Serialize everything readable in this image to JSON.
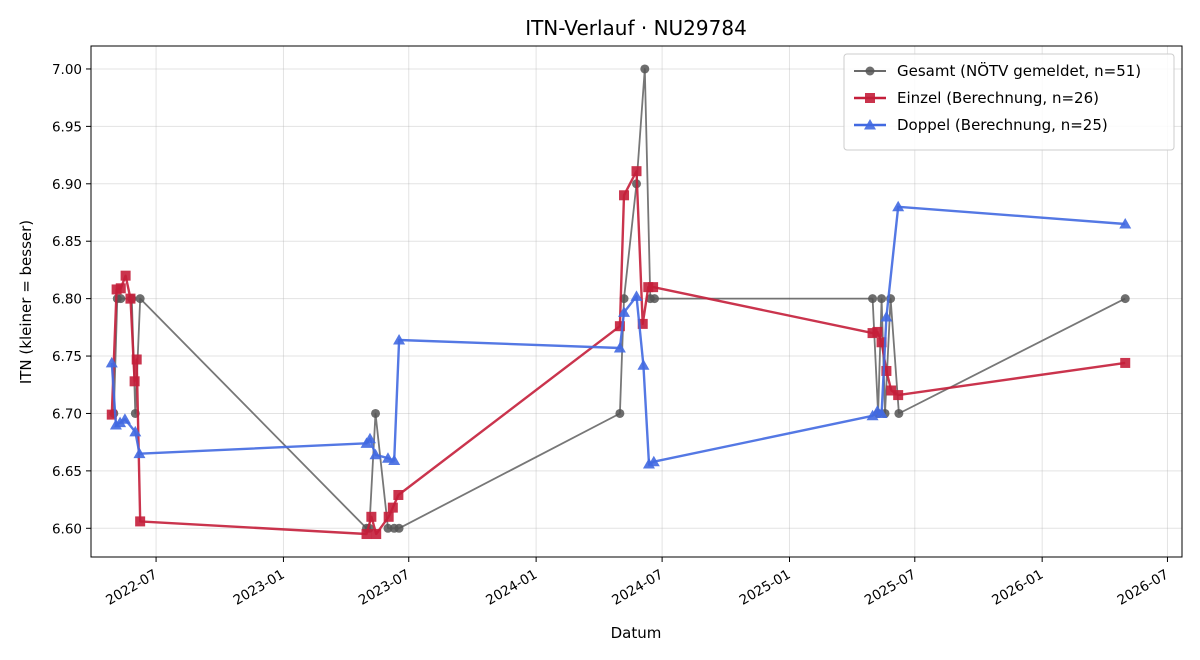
{
  "chart_data": {
    "type": "line",
    "title": "ITN-Verlauf · NU29784",
    "xlabel": "Datum",
    "ylabel": "ITN  (kleiner = besser)",
    "ylim": [
      6.575,
      7.02
    ],
    "xlim": [
      "2022-03-29",
      "2026-07-22"
    ],
    "x_ticks": [
      "2022-07",
      "2023-01",
      "2023-07",
      "2024-01",
      "2024-07",
      "2025-01",
      "2025-07",
      "2026-01",
      "2026-07"
    ],
    "y_ticks": [
      6.6,
      6.65,
      6.7,
      6.75,
      6.8,
      6.85,
      6.9,
      6.95,
      7.0
    ],
    "grid": true,
    "legend_position": "top-right",
    "series": [
      {
        "name": "Gesamt (NÖTV gemeldet, n=51)",
        "color": "#555555",
        "marker": "circle",
        "points": [
          [
            "2022-05-01",
            6.7
          ],
          [
            "2022-05-06",
            6.8
          ],
          [
            "2022-05-11",
            6.8
          ],
          [
            "2022-05-27",
            6.8
          ],
          [
            "2022-06-01",
            6.7
          ],
          [
            "2022-06-08",
            6.8
          ],
          [
            "2023-05-01",
            6.6
          ],
          [
            "2023-05-05",
            6.6
          ],
          [
            "2023-05-14",
            6.7
          ],
          [
            "2023-06-01",
            6.6
          ],
          [
            "2023-06-10",
            6.6
          ],
          [
            "2023-06-17",
            6.6
          ],
          [
            "2024-05-01",
            6.7
          ],
          [
            "2024-05-07",
            6.8
          ],
          [
            "2024-05-25",
            6.9
          ],
          [
            "2024-06-06",
            7.0
          ],
          [
            "2024-06-14",
            6.8
          ],
          [
            "2024-06-20",
            6.8
          ],
          [
            "2025-05-01",
            6.8
          ],
          [
            "2025-05-09",
            6.7
          ],
          [
            "2025-05-14",
            6.8
          ],
          [
            "2025-05-19",
            6.7
          ],
          [
            "2025-05-27",
            6.8
          ],
          [
            "2025-06-08",
            6.7
          ],
          [
            "2026-05-01",
            6.8
          ]
        ]
      },
      {
        "name": "Einzel (Berechnung, n=26)",
        "color": "#c41e3a",
        "marker": "square",
        "points": [
          [
            "2022-04-28",
            6.699
          ],
          [
            "2022-05-05",
            6.808
          ],
          [
            "2022-05-11",
            6.809
          ],
          [
            "2022-05-18",
            6.82
          ],
          [
            "2022-05-25",
            6.8
          ],
          [
            "2022-05-31",
            6.728
          ],
          [
            "2022-06-03",
            6.747
          ],
          [
            "2022-06-08",
            6.606
          ],
          [
            "2023-05-01",
            6.595
          ],
          [
            "2023-05-08",
            6.61
          ],
          [
            "2023-05-15",
            6.595
          ],
          [
            "2023-06-02",
            6.61
          ],
          [
            "2023-06-08",
            6.618
          ],
          [
            "2023-06-16",
            6.629
          ],
          [
            "2024-05-01",
            6.776
          ],
          [
            "2024-05-07",
            6.89
          ],
          [
            "2024-05-25",
            6.911
          ],
          [
            "2024-06-03",
            6.778
          ],
          [
            "2024-06-11",
            6.81
          ],
          [
            "2024-06-18",
            6.81
          ],
          [
            "2025-05-01",
            6.77
          ],
          [
            "2025-05-08",
            6.771
          ],
          [
            "2025-05-14",
            6.762
          ],
          [
            "2025-05-21",
            6.737
          ],
          [
            "2025-05-28",
            6.72
          ],
          [
            "2025-06-07",
            6.716
          ],
          [
            "2026-05-01",
            6.744
          ]
        ]
      },
      {
        "name": "Doppel (Berechnung, n=25)",
        "color": "#4169e1",
        "marker": "triangle",
        "points": [
          [
            "2022-04-28",
            6.744
          ],
          [
            "2022-05-04",
            6.69
          ],
          [
            "2022-05-10",
            6.692
          ],
          [
            "2022-05-17",
            6.695
          ],
          [
            "2022-06-01",
            6.684
          ],
          [
            "2022-06-07",
            6.665
          ],
          [
            "2023-05-01",
            6.674
          ],
          [
            "2023-05-06",
            6.678
          ],
          [
            "2023-05-14",
            6.664
          ],
          [
            "2023-06-01",
            6.661
          ],
          [
            "2023-06-10",
            6.659
          ],
          [
            "2023-06-17",
            6.764
          ],
          [
            "2024-05-01",
            6.757
          ],
          [
            "2024-05-07",
            6.788
          ],
          [
            "2024-05-25",
            6.802
          ],
          [
            "2024-06-04",
            6.742
          ],
          [
            "2024-06-12",
            6.656
          ],
          [
            "2024-06-19",
            6.658
          ],
          [
            "2025-05-01",
            6.698
          ],
          [
            "2025-05-08",
            6.702
          ],
          [
            "2025-05-14",
            6.7
          ],
          [
            "2025-05-21",
            6.784
          ],
          [
            "2025-06-07",
            6.88
          ],
          [
            "2026-05-01",
            6.865
          ]
        ]
      }
    ]
  }
}
